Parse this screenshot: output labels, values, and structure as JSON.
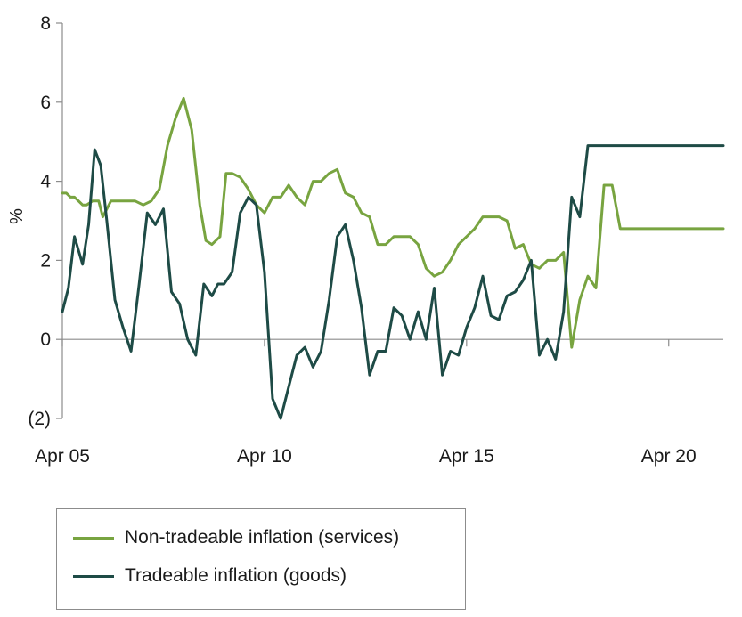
{
  "chart_data": {
    "type": "line",
    "title": "",
    "xlabel": "",
    "ylabel": "%",
    "ylim": [
      -2,
      8
    ],
    "xlim": [
      2005.0,
      2021.35
    ],
    "y_ticks": [
      {
        "value": 8,
        "label": "8"
      },
      {
        "value": 6,
        "label": "6"
      },
      {
        "value": 4,
        "label": "4"
      },
      {
        "value": 2,
        "label": "2"
      },
      {
        "value": 0,
        "label": "0"
      },
      {
        "value": -2,
        "label": "(2)"
      }
    ],
    "x_ticks": [
      {
        "value": 2005,
        "label": "Apr 05"
      },
      {
        "value": 2010,
        "label": "Apr 10"
      },
      {
        "value": 2015,
        "label": "Apr 15"
      },
      {
        "value": 2020,
        "label": "Apr 20"
      }
    ],
    "series": [
      {
        "name": "Non-tradeable inflation (services)",
        "color": "#78a440",
        "x": [
          2005.0,
          2005.1,
          2005.2,
          2005.3,
          2005.4,
          2005.5,
          2005.6,
          2005.75,
          2005.9,
          2006.0,
          2006.2,
          2006.4,
          2006.6,
          2006.8,
          2007.0,
          2007.2,
          2007.4,
          2007.6,
          2007.8,
          2008.0,
          2008.2,
          2008.4,
          2008.55,
          2008.7,
          2008.9,
          2009.05,
          2009.2,
          2009.4,
          2009.6,
          2009.8,
          2010.0,
          2010.2,
          2010.4,
          2010.6,
          2010.8,
          2011.0,
          2011.2,
          2011.4,
          2011.6,
          2011.8,
          2012.0,
          2012.2,
          2012.4,
          2012.6,
          2012.8,
          2013.0,
          2013.2,
          2013.4,
          2013.6,
          2013.8,
          2014.0,
          2014.2,
          2014.4,
          2014.6,
          2014.8,
          2015.0,
          2015.2,
          2015.4,
          2015.6,
          2015.8,
          2016.0,
          2016.2,
          2016.4,
          2016.6,
          2016.8,
          2017.0,
          2017.2,
          2017.4,
          2017.6,
          2017.8,
          2018.0,
          2018.2,
          2018.4,
          2018.6,
          2018.8,
          2019.0,
          2019.2,
          2019.4,
          2019.6,
          2019.8,
          2020.0,
          2020.2,
          2020.3,
          2020.45,
          2020.6,
          2020.8,
          2021.0,
          2021.2,
          2021.35
        ],
        "values": [
          3.7,
          3.7,
          3.6,
          3.6,
          3.5,
          3.4,
          3.4,
          3.5,
          3.5,
          3.1,
          3.5,
          3.5,
          3.5,
          3.5,
          3.4,
          3.5,
          3.8,
          4.9,
          5.6,
          6.1,
          5.3,
          3.4,
          2.5,
          2.4,
          2.6,
          4.2,
          4.2,
          4.1,
          3.8,
          3.4,
          3.2,
          3.6,
          3.6,
          3.9,
          3.6,
          3.4,
          4.0,
          4.0,
          4.2,
          4.3,
          3.7,
          3.6,
          3.2,
          3.1,
          2.4,
          2.4,
          2.6,
          2.6,
          2.6,
          2.4,
          1.8,
          1.6,
          1.7,
          2.0,
          2.4,
          2.6,
          2.8,
          3.1,
          3.1,
          3.1,
          3.0,
          2.3,
          2.4,
          1.9,
          1.8,
          2.0,
          2.0,
          2.2,
          -0.2,
          1.0,
          1.6,
          1.3,
          3.9,
          3.9,
          2.8,
          2.8,
          2.8,
          2.8,
          2.8,
          2.8,
          2.8,
          2.8,
          2.8,
          2.8,
          2.8,
          2.8,
          2.8,
          2.8,
          2.8
        ]
      },
      {
        "name": "Tradeable inflation (goods)",
        "color": "#1e4b46",
        "x": [
          2005.0,
          2005.15,
          2005.3,
          2005.5,
          2005.65,
          2005.8,
          2005.95,
          2006.1,
          2006.3,
          2006.5,
          2006.7,
          2006.9,
          2007.1,
          2007.3,
          2007.5,
          2007.7,
          2007.9,
          2008.1,
          2008.3,
          2008.5,
          2008.7,
          2008.85,
          2009.0,
          2009.2,
          2009.4,
          2009.6,
          2009.8,
          2010.0,
          2010.2,
          2010.4,
          2010.6,
          2010.8,
          2011.0,
          2011.2,
          2011.4,
          2011.6,
          2011.8,
          2012.0,
          2012.2,
          2012.4,
          2012.6,
          2012.8,
          2013.0,
          2013.2,
          2013.4,
          2013.6,
          2013.8,
          2014.0,
          2014.2,
          2014.4,
          2014.6,
          2014.8,
          2015.0,
          2015.2,
          2015.4,
          2015.6,
          2015.8,
          2016.0,
          2016.2,
          2016.4,
          2016.6,
          2016.8,
          2017.0,
          2017.2,
          2017.4,
          2017.6,
          2017.8,
          2018.0,
          2018.2,
          2018.4,
          2018.6,
          2018.8,
          2019.0,
          2019.2,
          2019.4,
          2019.6,
          2019.8,
          2020.0,
          2020.2,
          2020.35,
          2020.5,
          2020.65,
          2020.8,
          2021.0,
          2021.15,
          2021.35
        ],
        "values": [
          0.7,
          1.3,
          2.6,
          1.9,
          2.9,
          4.8,
          4.4,
          3.0,
          1.0,
          0.3,
          -0.3,
          1.4,
          3.2,
          2.9,
          3.3,
          1.2,
          0.9,
          0.0,
          -0.4,
          1.4,
          1.1,
          1.4,
          1.4,
          1.7,
          3.2,
          3.6,
          3.4,
          1.7,
          -1.5,
          -2.0,
          -1.2,
          -0.4,
          -0.2,
          -0.7,
          -0.3,
          1.0,
          2.6,
          2.9,
          2.0,
          0.8,
          -0.9,
          -0.3,
          -0.3,
          0.8,
          0.6,
          0.0,
          0.7,
          0.0,
          1.3,
          -0.9,
          -0.3,
          -0.4,
          0.3,
          0.8,
          1.6,
          0.6,
          0.5,
          1.1,
          1.2,
          1.5,
          2.0,
          -0.4,
          0.0,
          -0.5,
          0.7,
          3.6,
          3.1,
          4.9,
          4.9,
          4.9,
          4.9,
          4.9,
          4.9,
          4.9,
          4.9,
          4.9,
          4.9,
          4.9,
          4.9,
          4.9,
          4.9,
          4.9,
          4.9,
          4.9,
          4.9,
          4.9
        ]
      }
    ]
  },
  "legend": {
    "items": [
      {
        "label": "Non-tradeable inflation (services)",
        "color": "#78a440"
      },
      {
        "label": "Tradeable inflation (goods)",
        "color": "#1e4b46"
      }
    ]
  }
}
